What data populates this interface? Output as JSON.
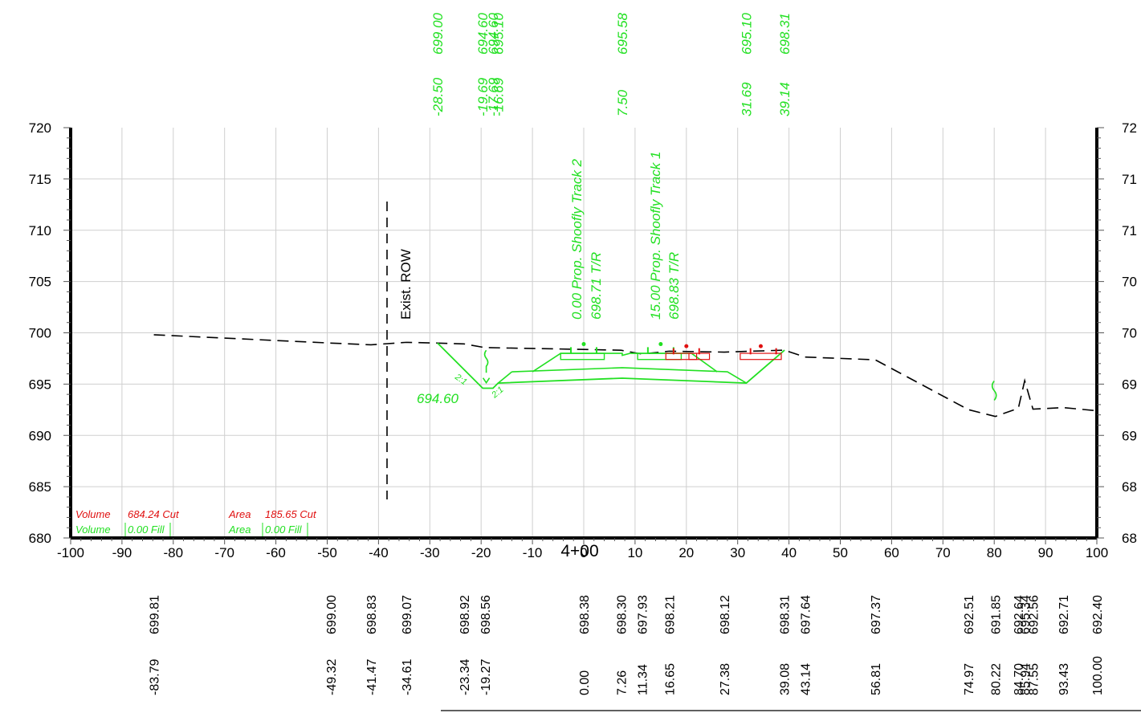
{
  "section": {
    "station_label": "4+00",
    "offset_ticks": [
      "-100",
      "-90",
      "-80",
      "-70",
      "-60",
      "-50",
      "-40",
      "-30",
      "-20",
      "-10",
      "0",
      "10",
      "20",
      "30",
      "40",
      "50",
      "60",
      "70",
      "80",
      "90",
      "100"
    ],
    "elevation_ticks": [
      "720",
      "715",
      "710",
      "705",
      "700",
      "695",
      "690",
      "685",
      "680"
    ],
    "elevation_ticks_right": [
      "72",
      "71",
      "71",
      "70",
      "70",
      "69",
      "69",
      "68",
      "68"
    ]
  },
  "top_labels": [
    {
      "offset": "-28.50",
      "elev": "699.00"
    },
    {
      "offset": "-19.69",
      "elev": "694.60"
    },
    {
      "offset": "-17.69",
      "elev": "694.60"
    },
    {
      "offset": "-16.69",
      "elev": "695.10"
    },
    {
      "offset": "7.50",
      "elev": "695.58"
    },
    {
      "offset": "31.69",
      "elev": "695.10"
    },
    {
      "offset": "39.14",
      "elev": "698.31"
    }
  ],
  "bottom_labels": [
    {
      "offset": "-83.79",
      "elev": "699.81"
    },
    {
      "offset": "-49.32",
      "elev": "699.00"
    },
    {
      "offset": "-41.47",
      "elev": "698.83"
    },
    {
      "offset": "-34.61",
      "elev": "699.07"
    },
    {
      "offset": "-23.34",
      "elev": "698.92"
    },
    {
      "offset": "-19.27",
      "elev": "698.56"
    },
    {
      "offset": "0.00",
      "elev": "698.38"
    },
    {
      "offset": "7.26",
      "elev": "698.30"
    },
    {
      "offset": "11.34",
      "elev": "697.93"
    },
    {
      "offset": "16.65",
      "elev": "698.21"
    },
    {
      "offset": "27.38",
      "elev": "698.12"
    },
    {
      "offset": "39.08",
      "elev": "698.31"
    },
    {
      "offset": "43.14",
      "elev": "697.64"
    },
    {
      "offset": "56.81",
      "elev": "697.37"
    },
    {
      "offset": "74.97",
      "elev": "692.51"
    },
    {
      "offset": "80.22",
      "elev": "691.85"
    },
    {
      "offset": "84.70",
      "elev": "692.64"
    },
    {
      "offset": "85.94",
      "elev": "695.34"
    },
    {
      "offset": "87.55",
      "elev": "692.56"
    },
    {
      "offset": "93.43",
      "elev": "692.71"
    },
    {
      "offset": "100.00",
      "elev": "692.40"
    }
  ],
  "annotations": {
    "row": "Exist. ROW",
    "track2_line1": "0.00 Prop. Shoofly Track 2",
    "track2_line2": "698.71 T/R",
    "track1_line1": "15.00 Prop. Shoofly Track 1",
    "track1_line2": "698.83 T/R",
    "ditch_elev": "694.60",
    "slope_left": "2:1",
    "slope_right": "2:1"
  },
  "quantities": {
    "cut_volume_label": "Volume",
    "cut_volume_value": "684.24 Cut",
    "fill_volume_label": "Volume",
    "fill_volume_value": "0.00 Fill",
    "cut_area_label": "Area",
    "cut_area_value": "185.65 Cut",
    "fill_area_label": "Area",
    "fill_area_value": "0.00 Fill"
  },
  "colors": {
    "proposed": "#22e022",
    "existing": "#000000",
    "quantities_cut": "#e01010",
    "grid": "#cccccc"
  },
  "existing_ground": [
    [
      -83.79,
      699.81
    ],
    [
      -49.32,
      699.0
    ],
    [
      -41.47,
      698.83
    ],
    [
      -34.61,
      699.07
    ],
    [
      -28.5,
      699.0
    ],
    [
      -23.34,
      698.92
    ],
    [
      -19.27,
      698.56
    ],
    [
      0.0,
      698.38
    ],
    [
      7.26,
      698.3
    ],
    [
      11.34,
      697.93
    ],
    [
      16.65,
      698.21
    ],
    [
      27.38,
      698.12
    ],
    [
      39.08,
      698.31
    ],
    [
      43.14,
      697.64
    ],
    [
      56.81,
      697.37
    ],
    [
      74.97,
      692.51
    ],
    [
      80.22,
      691.85
    ],
    [
      84.7,
      692.64
    ],
    [
      85.94,
      695.34
    ],
    [
      87.55,
      692.56
    ],
    [
      93.43,
      692.71
    ],
    [
      100.0,
      692.4
    ]
  ],
  "proposed_outline": [
    [
      -28.5,
      699.0
    ],
    [
      -19.69,
      694.6
    ],
    [
      -17.69,
      694.6
    ],
    [
      -16.69,
      695.1
    ],
    [
      7.5,
      695.58
    ],
    [
      31.69,
      695.1
    ],
    [
      39.14,
      698.31
    ]
  ],
  "proposed_subgrade": [
    [
      -14.0,
      696.2
    ],
    [
      7.5,
      696.6
    ],
    [
      28.0,
      696.2
    ],
    [
      31.69,
      695.1
    ]
  ],
  "track2_ballast": [
    [
      -10.0,
      696.2
    ],
    [
      -4.5,
      698.0
    ],
    [
      7.5,
      698.0
    ],
    [
      7.5,
      697.8
    ],
    [
      9.0,
      698.0
    ],
    [
      21.0,
      698.0
    ],
    [
      26.0,
      696.2
    ]
  ]
}
